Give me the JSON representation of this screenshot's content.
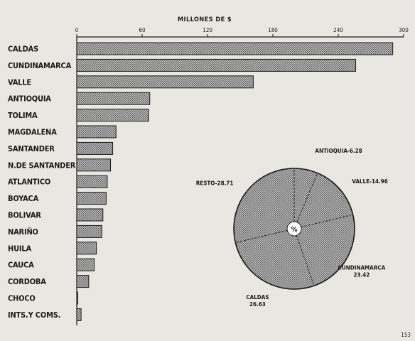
{
  "chart_data": [
    {
      "type": "bar",
      "orientation": "horizontal",
      "title": "MILLONES DE $",
      "xlim": [
        0,
        300
      ],
      "ticks": [
        0,
        60,
        120,
        180,
        240,
        300
      ],
      "tick_labels": [
        "0",
        "60",
        "120",
        "180",
        "240",
        "300"
      ],
      "grid": false,
      "categories": [
        "CALDAS",
        "CUNDINAMARCA",
        "VALLE",
        "ANTIOQUIA",
        "TOLIMA",
        "MAGDALENA",
        "SANTANDER",
        "N.DE SANTANDER",
        "ATLANTICO",
        "BOYACA",
        "BOLIVAR",
        "NARIÑO",
        "HUILA",
        "CAUCA",
        "CORDOBA",
        "CHOCO",
        "INTS.Y COMS."
      ],
      "values": [
        290,
        256,
        162,
        67,
        66,
        36,
        33,
        31,
        28,
        27,
        24,
        23,
        18,
        16,
        11,
        1,
        4
      ]
    },
    {
      "type": "pie",
      "center_label": "%",
      "slices": [
        {
          "label": "ANTIOQUIA",
          "value_label": "6.28",
          "value": 6.28
        },
        {
          "label": "VALLE",
          "value_label": "14.96",
          "value": 14.96
        },
        {
          "label": "CUNDINAMARCA",
          "value_label": "23.42",
          "value": 23.42
        },
        {
          "label": "CALDAS",
          "value_label": "26.63",
          "value": 26.63
        },
        {
          "label": "RESTO",
          "value_label": "28.71",
          "value": 28.71
        }
      ]
    }
  ],
  "colors": {
    "background": "#e9e7e1",
    "ink": "#1a1a1a",
    "hatch_fill": "#9a9a9a"
  },
  "page_number": "153"
}
